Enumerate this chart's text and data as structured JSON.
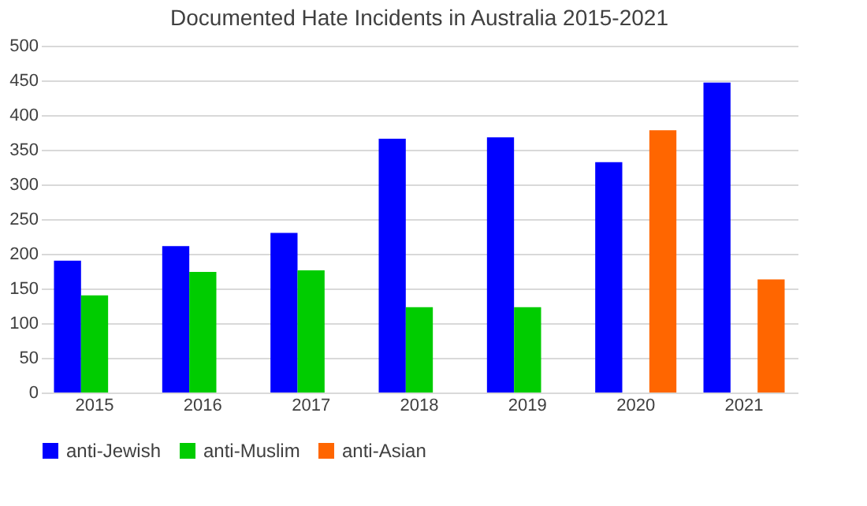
{
  "chart_data": {
    "type": "bar",
    "title": "Documented Hate Incidents in Australia 2015-2021",
    "categories": [
      "2015",
      "2016",
      "2017",
      "2018",
      "2019",
      "2020",
      "2021"
    ],
    "series": [
      {
        "name": "anti-Jewish",
        "color": "#0000ff",
        "values": [
          190,
          211,
          230,
          366,
          368,
          332,
          447
        ]
      },
      {
        "name": "anti-Muslim",
        "color": "#00cc00",
        "values": [
          140,
          174,
          176,
          123,
          123,
          null,
          null
        ]
      },
      {
        "name": "anti-Asian",
        "color": "#ff6600",
        "values": [
          null,
          null,
          null,
          null,
          null,
          378,
          163
        ]
      }
    ],
    "ylim": [
      0,
      500
    ],
    "yticks": [
      0,
      50,
      100,
      150,
      200,
      250,
      300,
      350,
      400,
      450,
      500
    ],
    "grid": "y",
    "legend": "bottom"
  }
}
